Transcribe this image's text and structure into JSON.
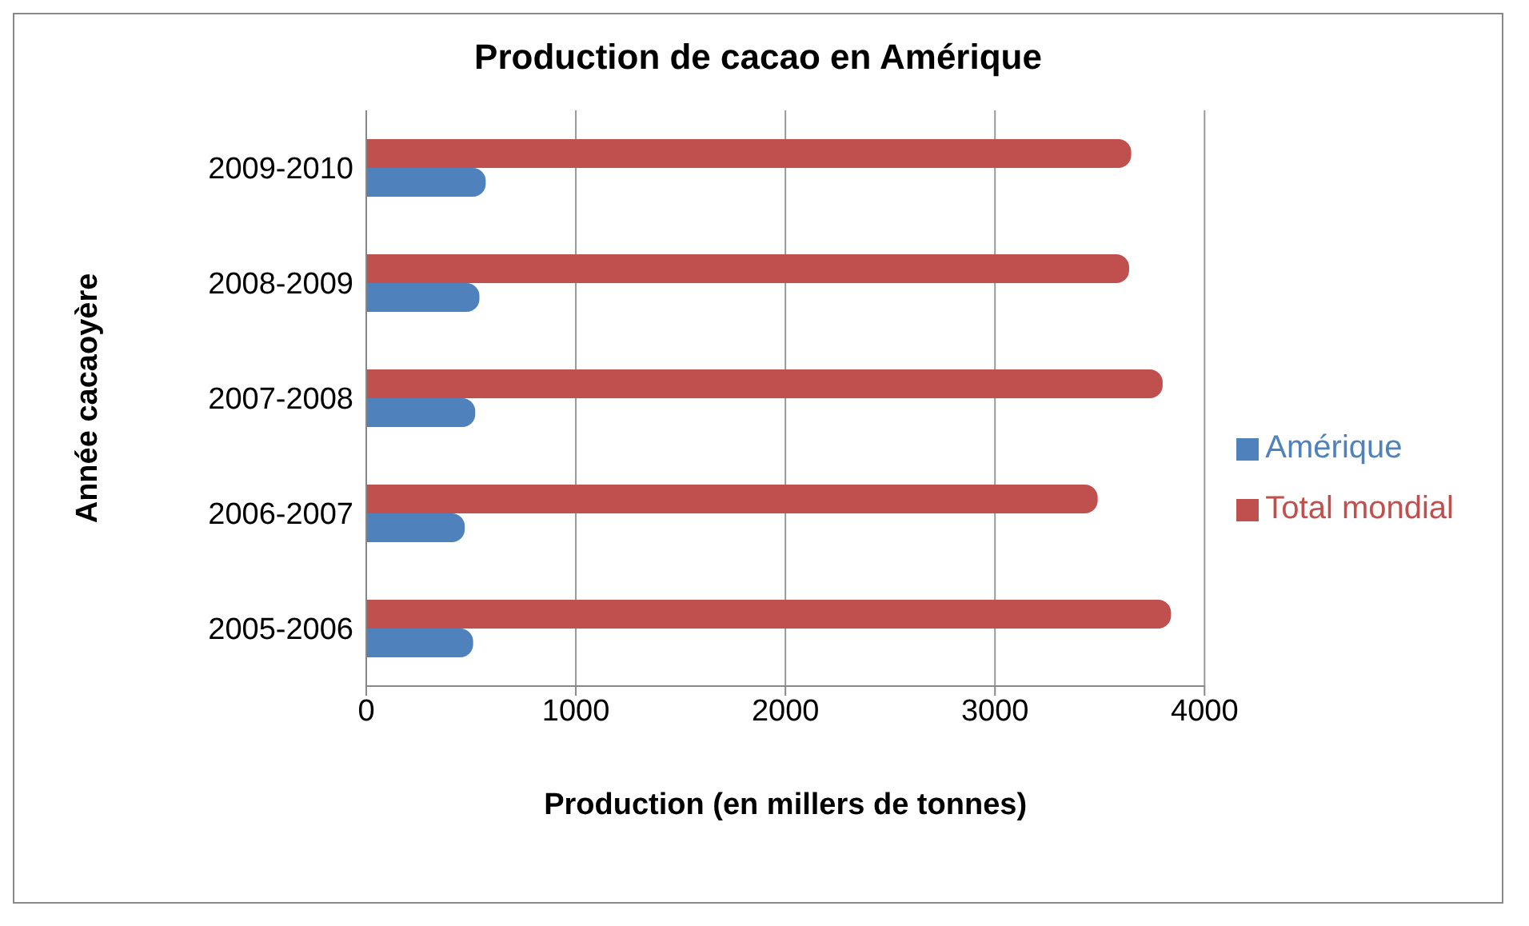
{
  "chart_data": {
    "type": "bar",
    "orientation": "horizontal",
    "title": "Production de cacao en Amérique",
    "xlabel": "Production (en millers de tonnes)",
    "ylabel": "Année cacaoyère",
    "categories": [
      "2009-2010",
      "2008-2009",
      "2007-2008",
      "2006-2007",
      "2005-2006"
    ],
    "series": [
      {
        "name": "Total mondial",
        "color": "#c0504d",
        "values": [
          3650,
          3640,
          3800,
          3490,
          3840
        ]
      },
      {
        "name": "Amérique",
        "color": "#4f81bd",
        "values": [
          570,
          540,
          520,
          470,
          510
        ]
      }
    ],
    "xlim": [
      0,
      4000
    ],
    "xticks": [
      0,
      1000,
      2000,
      3000,
      4000
    ],
    "grid": "x",
    "legend": "right"
  }
}
